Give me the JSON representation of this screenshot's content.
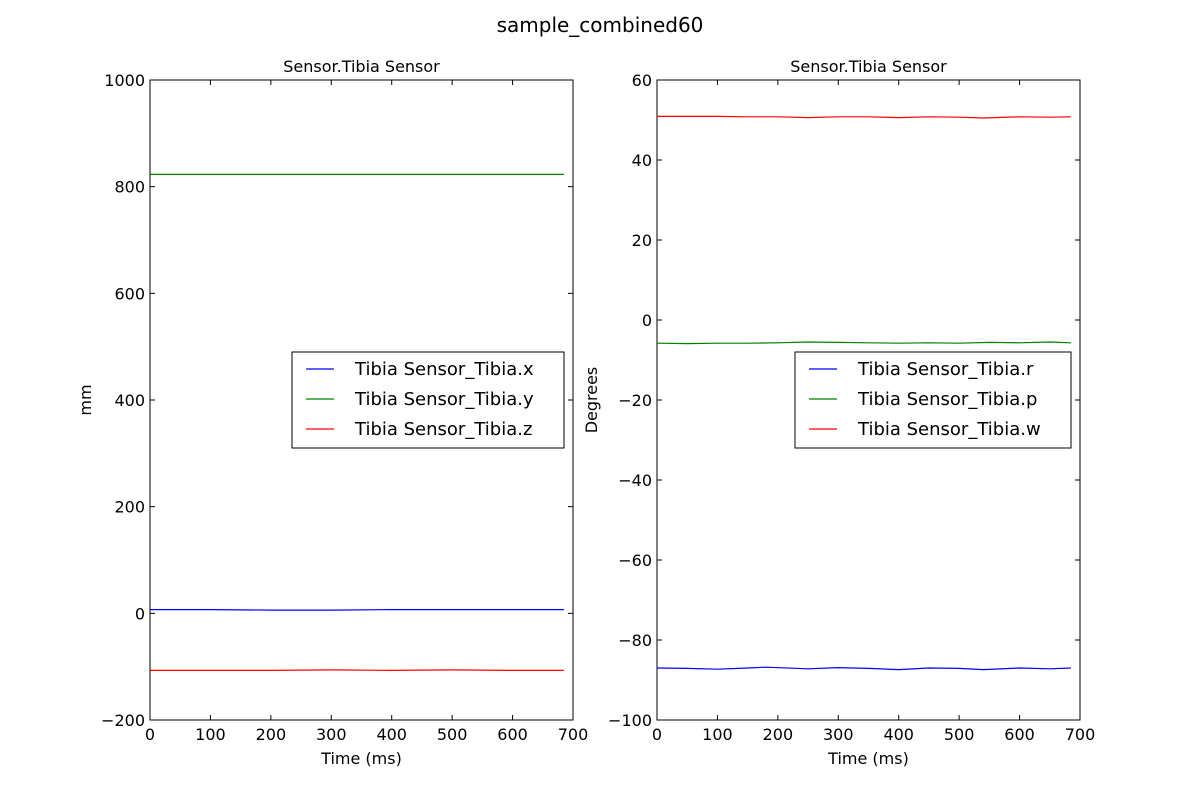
{
  "figure": {
    "suptitle": "sample_combined60"
  },
  "chart_data": [
    {
      "type": "line",
      "title": "Sensor.Tibia Sensor",
      "xlabel": "Time (ms)",
      "ylabel": "mm",
      "xlim": [
        0,
        700
      ],
      "ylim": [
        -200,
        1000
      ],
      "xticks": [
        0,
        100,
        200,
        300,
        400,
        500,
        600,
        700
      ],
      "yticks": [
        -200,
        0,
        200,
        400,
        600,
        800,
        1000
      ],
      "legend": {
        "placement": "center-right"
      },
      "grid": false,
      "series": [
        {
          "name": "Tibia Sensor_Tibia.x",
          "color": "#0000ff",
          "x": [
            0,
            100,
            200,
            300,
            400,
            500,
            600,
            685
          ],
          "y": [
            7,
            7,
            6,
            6,
            7,
            7,
            7,
            7
          ]
        },
        {
          "name": "Tibia Sensor_Tibia.y",
          "color": "#008000",
          "x": [
            0,
            100,
            200,
            300,
            400,
            500,
            600,
            685
          ],
          "y": [
            823,
            823,
            823,
            823,
            823,
            823,
            823,
            823
          ]
        },
        {
          "name": "Tibia Sensor_Tibia.z",
          "color": "#ff0000",
          "x": [
            0,
            100,
            200,
            300,
            400,
            500,
            600,
            685
          ],
          "y": [
            -107,
            -107,
            -107,
            -106,
            -107,
            -106,
            -107,
            -107
          ]
        }
      ]
    },
    {
      "type": "line",
      "title": "Sensor.Tibia Sensor",
      "xlabel": "Time (ms)",
      "ylabel": "Degrees",
      "xlim": [
        0,
        700
      ],
      "ylim": [
        -100,
        60
      ],
      "xticks": [
        0,
        100,
        200,
        300,
        400,
        500,
        600,
        700
      ],
      "yticks": [
        -100,
        -80,
        -60,
        -40,
        -20,
        0,
        20,
        40,
        60
      ],
      "legend": {
        "placement": "center-right"
      },
      "grid": false,
      "series": [
        {
          "name": "Tibia Sensor_Tibia.r",
          "color": "#0000ff",
          "x": [
            0,
            50,
            100,
            150,
            180,
            250,
            300,
            350,
            400,
            450,
            500,
            540,
            600,
            650,
            685
          ],
          "y": [
            -87,
            -87.1,
            -87.3,
            -87,
            -86.8,
            -87.2,
            -86.9,
            -87.1,
            -87.4,
            -87,
            -87.1,
            -87.4,
            -87,
            -87.2,
            -87
          ]
        },
        {
          "name": "Tibia Sensor_Tibia.p",
          "color": "#008000",
          "x": [
            0,
            50,
            100,
            150,
            200,
            250,
            300,
            350,
            400,
            450,
            500,
            550,
            600,
            650,
            685
          ],
          "y": [
            -5.8,
            -5.9,
            -5.8,
            -5.8,
            -5.7,
            -5.5,
            -5.6,
            -5.7,
            -5.8,
            -5.7,
            -5.8,
            -5.6,
            -5.7,
            -5.5,
            -5.7
          ]
        },
        {
          "name": "Tibia Sensor_Tibia.w",
          "color": "#ff0000",
          "x": [
            0,
            50,
            100,
            150,
            200,
            250,
            300,
            350,
            400,
            450,
            500,
            540,
            600,
            650,
            685
          ],
          "y": [
            50.9,
            50.9,
            50.9,
            50.8,
            50.8,
            50.6,
            50.8,
            50.8,
            50.6,
            50.8,
            50.7,
            50.5,
            50.8,
            50.7,
            50.8
          ]
        }
      ]
    }
  ]
}
